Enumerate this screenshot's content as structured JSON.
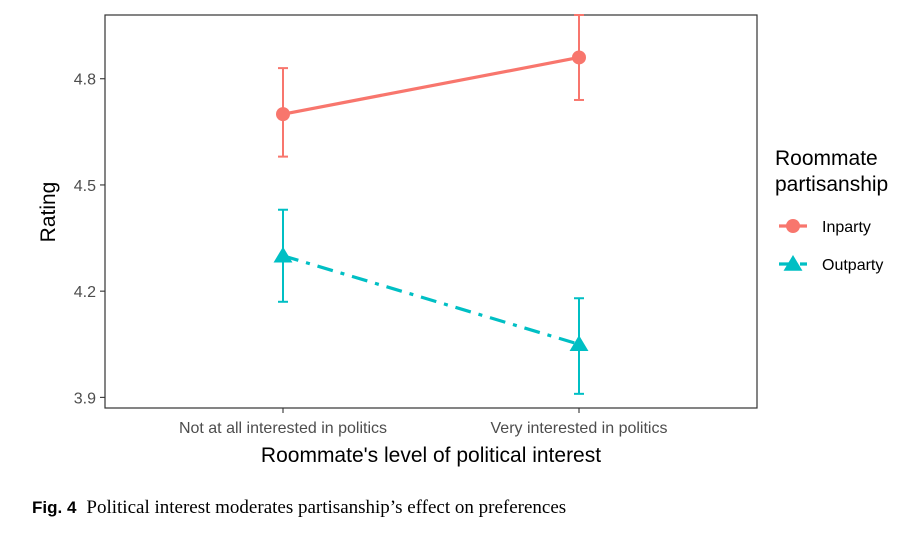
{
  "chart_data": {
    "type": "line",
    "categories": [
      "Not at all interested in politics",
      "Very interested in politics"
    ],
    "xlabel": "Roommate's level of political interest",
    "ylabel": "Rating",
    "ylim": [
      3.87,
      4.98
    ],
    "yticks": [
      3.9,
      4.2,
      4.5,
      4.8
    ],
    "ytick_labels": [
      "3.9",
      "4.2",
      "4.5",
      "4.8"
    ],
    "grid": false,
    "legend": {
      "title_line1": "Roommate",
      "title_line2": "partisanship",
      "placement": "right"
    },
    "series": [
      {
        "name": "Inparty",
        "values": [
          4.7,
          4.86
        ],
        "lower": [
          4.58,
          4.74
        ],
        "upper": [
          4.83,
          4.98
        ],
        "color": "#F8766D",
        "marker": "circle",
        "linestyle": "solid"
      },
      {
        "name": "Outparty",
        "values": [
          4.3,
          4.05
        ],
        "lower": [
          4.17,
          3.91
        ],
        "upper": [
          4.43,
          4.18
        ],
        "color": "#00BFC4",
        "marker": "triangle",
        "linestyle": "dashdot"
      }
    ]
  },
  "caption": {
    "label": "Fig. 4",
    "text": "Political interest moderates partisanship’s effect on preferences"
  }
}
